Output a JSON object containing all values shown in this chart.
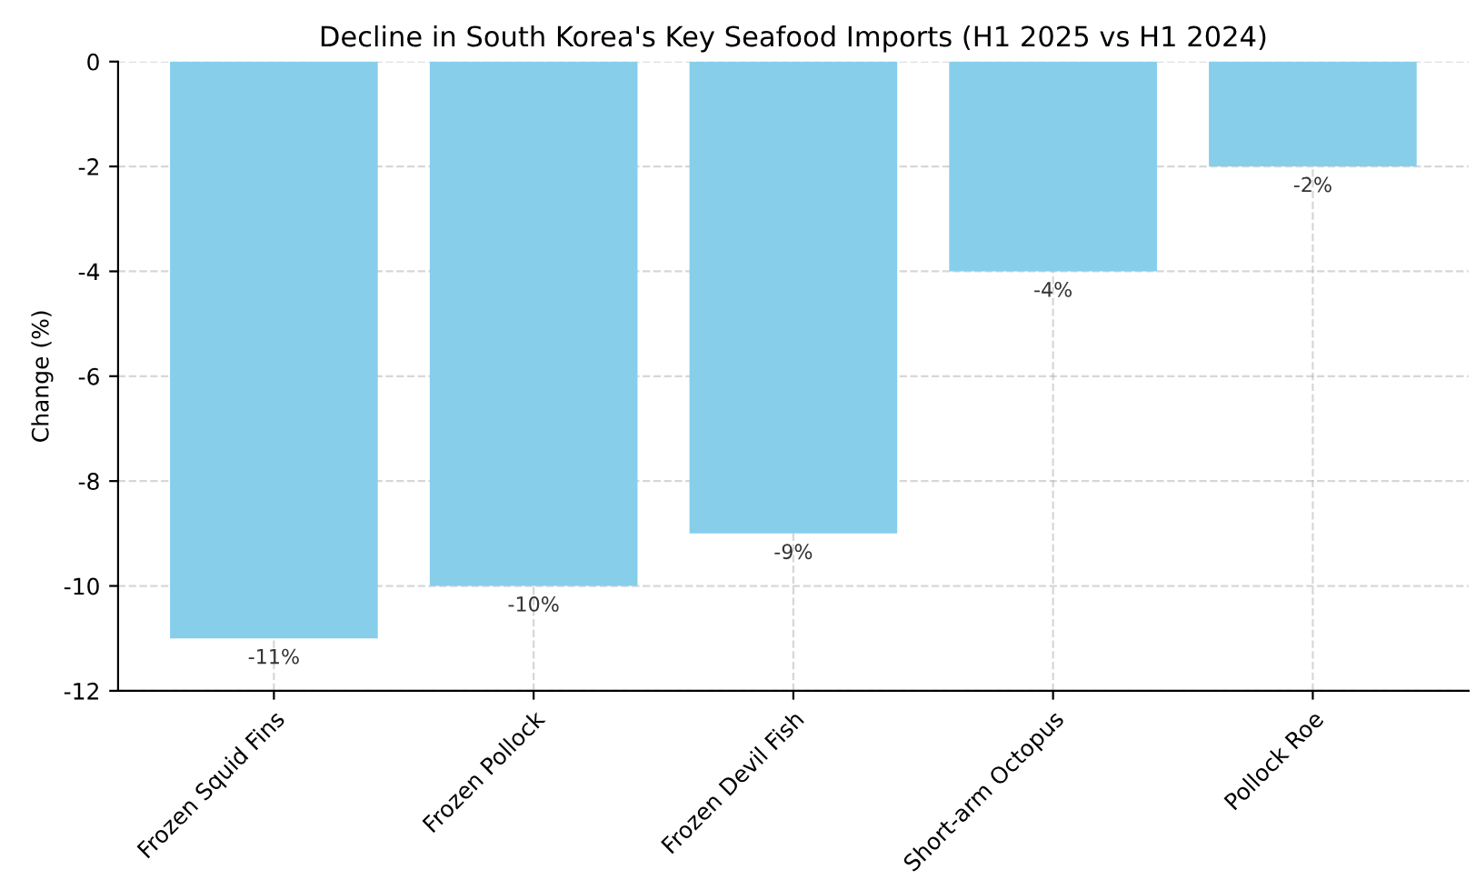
{
  "chart_data": {
    "type": "bar",
    "title": "Decline in South Korea's Key Seafood Imports (H1 2025 vs H1 2024)",
    "ylabel": "Change (%)",
    "categories": [
      "Frozen Squid Fins",
      "Frozen Pollock",
      "Frozen Devil Fish",
      "Short-arm Octopus",
      "Pollock Roe"
    ],
    "values": [
      -11,
      -10,
      -9,
      -4,
      -2
    ],
    "color": "#87ceeb",
    "value_labels": [
      "-11%",
      "-10%",
      "-9%",
      "-4%",
      "-2%"
    ],
    "ylim": [
      -12,
      0
    ],
    "yticks": [
      -12,
      -10,
      -8,
      -6,
      -4,
      -2,
      0
    ],
    "grid": true,
    "line_style": "dashed"
  }
}
